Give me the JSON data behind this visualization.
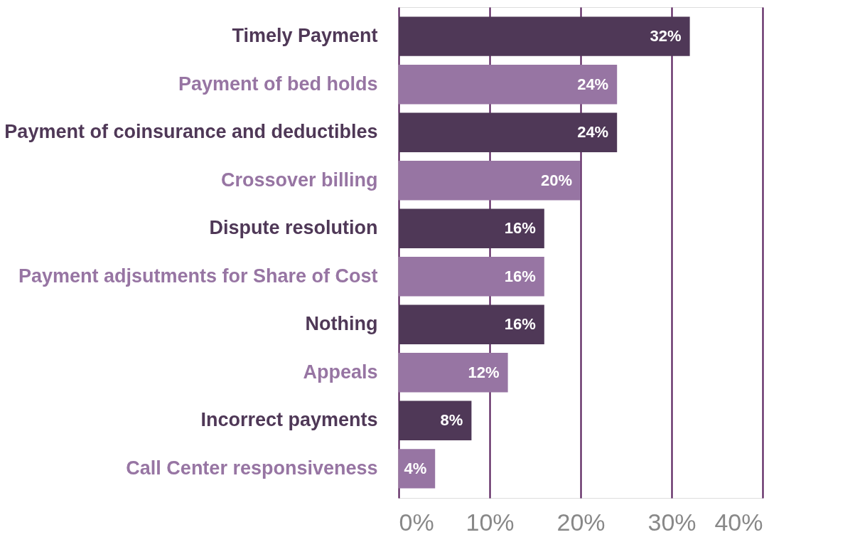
{
  "chart_data": {
    "type": "bar",
    "orientation": "horizontal",
    "categories": [
      "Timely Payment",
      "Payment of bed holds",
      "Payment of coinsurance and deductibles",
      "Crossover billing",
      "Dispute resolution",
      "Payment adjsutments for Share of Cost",
      "Nothing",
      "Appeals",
      "Incorrect payments",
      "Call Center responsiveness"
    ],
    "values": [
      32,
      24,
      24,
      20,
      16,
      16,
      16,
      12,
      8,
      4
    ],
    "colors": [
      "#4f3857",
      "#9775a3",
      "#4f3857",
      "#9775a3",
      "#4f3857",
      "#9775a3",
      "#4f3857",
      "#9775a3",
      "#4f3857",
      "#9775a3"
    ],
    "xlim": [
      0,
      40
    ],
    "xticks": [
      {
        "value": 0,
        "label": "0%"
      },
      {
        "value": 10,
        "label": "10%"
      },
      {
        "value": 20,
        "label": "20%"
      },
      {
        "value": 30,
        "label": "30%"
      },
      {
        "value": 40,
        "label": "40%"
      }
    ],
    "value_labels": [
      "32%",
      "24%",
      "24%",
      "20%",
      "16%",
      "16%",
      "16%",
      "12%",
      "8%",
      "4%"
    ],
    "grid": "x"
  }
}
